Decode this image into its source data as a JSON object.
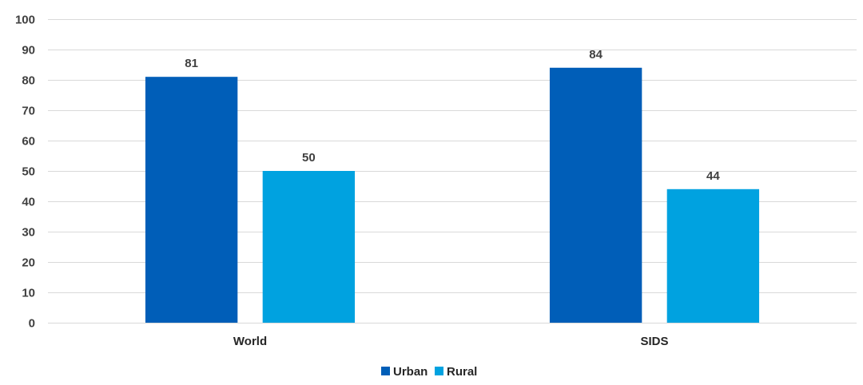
{
  "chart_data": {
    "type": "bar",
    "categories": [
      "World",
      "SIDS"
    ],
    "series": [
      {
        "name": "Urban",
        "values": [
          81,
          84
        ],
        "color": "#005eb8"
      },
      {
        "name": "Rural",
        "values": [
          50,
          44
        ],
        "color": "#00a2e0"
      }
    ],
    "data_labels": [
      [
        "81",
        "84"
      ],
      [
        "50",
        "44"
      ]
    ],
    "ylim": [
      0,
      100
    ],
    "yticks": [
      0,
      10,
      20,
      30,
      40,
      50,
      60,
      70,
      80,
      90,
      100
    ],
    "grid": true,
    "legend": "bottom-center",
    "title": "",
    "xlabel": "",
    "ylabel": ""
  }
}
